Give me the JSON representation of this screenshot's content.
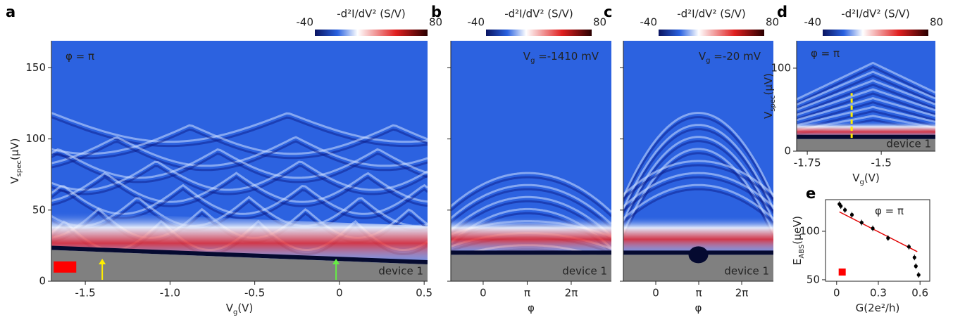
{
  "chart_data": [
    {
      "type": "heatmap",
      "panel_label": "a",
      "colorbar_label": "-d²I/dV² (S/V)",
      "clim": [
        -40,
        80
      ],
      "xlabel": [
        "V",
        "g",
        "(V)"
      ],
      "ylabel": [
        "V",
        "spec",
        "(μV)"
      ],
      "xlim": [
        -1.7,
        0.52
      ],
      "xticks": [
        -1.5,
        {
          "value": -1,
          "label": "-1.0"
        },
        -0.5,
        0,
        0.5
      ],
      "ylim": [
        0,
        169
      ],
      "yticks": [
        0,
        50,
        100,
        150
      ],
      "annotation": {
        "parts": [
          "φ = π"
        ],
        "color": "#ffffff"
      },
      "device_label": "device 1",
      "arrows": [
        {
          "x": -1.4,
          "color": "#ffee00"
        },
        {
          "x": -0.02,
          "color": "#66ee44"
        }
      ],
      "marker": {
        "x": -1.62,
        "y": 10,
        "color": "#ff0000"
      }
    },
    {
      "type": "heatmap",
      "panel_label": "b",
      "colorbar_label": "-d²I/dV² (S/V)",
      "clim": [
        -40,
        80
      ],
      "xlabel": [
        "φ"
      ],
      "xlim": [
        -2.31,
        9.15
      ],
      "xticks": [
        0,
        {
          "value": 3.1416,
          "label": "π"
        },
        {
          "value": 6.2832,
          "label": "2π"
        }
      ],
      "ylim": [
        0,
        169
      ],
      "yticks": [
        0,
        50,
        100,
        150
      ],
      "annotation": {
        "parts": [
          "V",
          "g",
          " =-1410 mV"
        ],
        "color": "#f2e640"
      },
      "device_label": "device 1"
    },
    {
      "type": "heatmap",
      "panel_label": "c",
      "colorbar_label": "-d²I/dV² (S/V)",
      "clim": [
        -40,
        80
      ],
      "xlabel": [
        "φ"
      ],
      "xlim": [
        -2.37,
        8.6
      ],
      "xticks": [
        0,
        {
          "value": 3.1416,
          "label": "π"
        },
        {
          "value": 6.2832,
          "label": "2π"
        }
      ],
      "ylim": [
        0,
        169
      ],
      "yticks": [
        0,
        50,
        100,
        150
      ],
      "annotation": {
        "parts": [
          "V",
          "g",
          " =-20 mV"
        ],
        "color": "#7ee26a"
      },
      "device_label": "device 1"
    },
    {
      "type": "heatmap",
      "panel_label": "d",
      "colorbar_label": "-d²I/dV² (S/V)",
      "clim": [
        -40,
        80
      ],
      "xlabel": [
        "V",
        "g",
        "(V)"
      ],
      "ylabel": [
        "V",
        "spec",
        "(μV)"
      ],
      "xlim": [
        -1.786,
        -1.317
      ],
      "xticks": [
        -1.75,
        -1.5
      ],
      "ylim": [
        0,
        133
      ],
      "yticks": [
        0,
        100
      ],
      "annotation": {
        "parts": [
          "φ = π"
        ],
        "color": "#ffffff"
      },
      "device_label": "device 1",
      "cut": {
        "x": -1.6,
        "ymin": 16,
        "ymax": 70,
        "color": "#ffee00"
      }
    },
    {
      "type": "scatter",
      "panel_label": "e",
      "xlabel": [
        "G(2e²/h)"
      ],
      "ylabel": [
        "E",
        "ABS",
        "(μeV)"
      ],
      "xlim": [
        -0.08,
        0.67
      ],
      "xticks": [
        0,
        0.3,
        0.6
      ],
      "ylim": [
        48.5,
        132.6
      ],
      "yticks": [
        50,
        100
      ],
      "annotation": {
        "parts": [
          "φ = π"
        ],
        "color": "#000000"
      },
      "points": {
        "x": [
          0.02,
          0.03,
          0.06,
          0.11,
          0.18,
          0.26,
          0.37,
          0.52,
          0.56,
          0.57,
          0.59
        ],
        "y": [
          128,
          126,
          122,
          117,
          109,
          103,
          93,
          84,
          73,
          64,
          55
        ]
      },
      "fit_line": {
        "x": [
          0.02,
          0.58
        ],
        "y": [
          120,
          79
        ],
        "color": "#e00000"
      },
      "marker": {
        "x": 0.04,
        "y": 58,
        "color": "#ff0000"
      }
    }
  ]
}
